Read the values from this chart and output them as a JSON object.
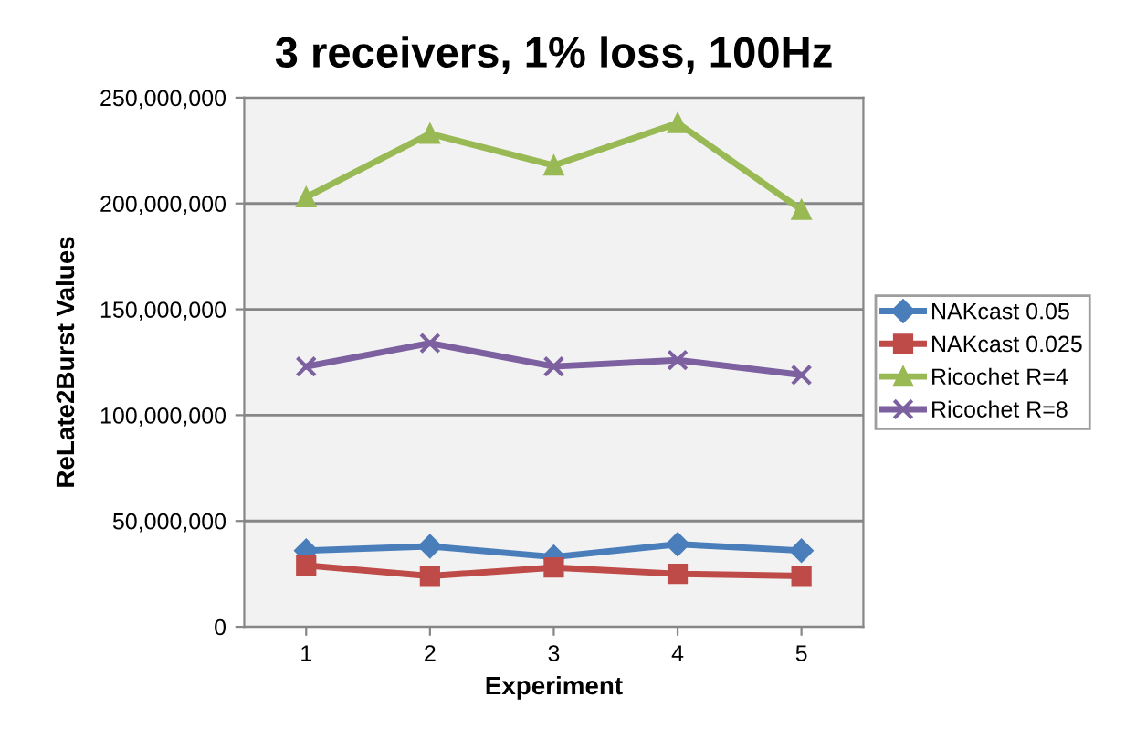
{
  "chart_data": {
    "type": "line",
    "title": "3 receivers, 1% loss, 100Hz",
    "xlabel": "Experiment",
    "ylabel": "ReLate2Burst Values",
    "categories": [
      "1",
      "2",
      "3",
      "4",
      "5"
    ],
    "series": [
      {
        "name": "NAKcast 0.05",
        "color": "#4a7ebb",
        "marker": "diamond",
        "values": [
          36000000,
          38000000,
          33000000,
          39000000,
          36000000
        ]
      },
      {
        "name": "NAKcast 0.025",
        "color": "#be4b48",
        "marker": "square",
        "values": [
          29000000,
          24000000,
          28000000,
          25000000,
          24000000
        ]
      },
      {
        "name": "Ricochet R=4",
        "color": "#98b954",
        "marker": "triangle",
        "values": [
          203000000,
          233000000,
          218000000,
          238000000,
          197000000
        ]
      },
      {
        "name": "Ricochet R=8",
        "color": "#7d60a0",
        "marker": "cross",
        "values": [
          123000000,
          134000000,
          123000000,
          126000000,
          119000000
        ]
      }
    ],
    "ylim": [
      0,
      250000000
    ],
    "yticks": [
      {
        "value": 0,
        "label": "0"
      },
      {
        "value": 50000000,
        "label": "50,000,000"
      },
      {
        "value": 100000000,
        "label": "100,000,000"
      },
      {
        "value": 150000000,
        "label": "150,000,000"
      },
      {
        "value": 200000000,
        "label": "200,000,000"
      },
      {
        "value": 250000000,
        "label": "250,000,000"
      }
    ],
    "grid": "y",
    "legend": "right"
  }
}
